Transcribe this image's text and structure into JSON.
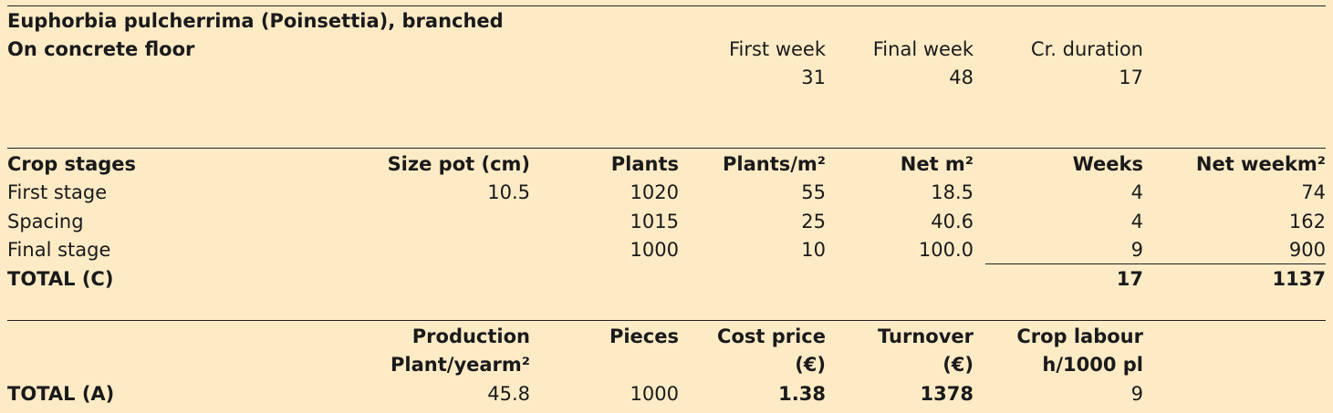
{
  "header": {
    "title": "Euphorbia pulcherrima (Poinsettia), branched",
    "subtitle": "On concrete floor",
    "first_week_label": "First week",
    "final_week_label": "Final week",
    "duration_label": "Cr. duration",
    "first_week": "31",
    "final_week": "48",
    "duration": "17"
  },
  "stages": {
    "columns": [
      "Crop stages",
      "Size pot (cm)",
      "Plants",
      "Plants/m²",
      "Net m²",
      "Weeks",
      "Net weekm²"
    ],
    "rows": [
      [
        "First stage",
        "10.5",
        "1020",
        "55",
        "18.5",
        "4",
        "74"
      ],
      [
        "Spacing",
        "",
        "1015",
        "25",
        "40.6",
        "4",
        "162"
      ],
      [
        "Final stage",
        "",
        "1000",
        "10",
        "100.0",
        "9",
        "900"
      ]
    ],
    "total_label": "TOTAL (C)",
    "total_weeks": "17",
    "total_net_weekm2": "1137"
  },
  "summary": {
    "production_label_1": "Production",
    "production_label_2": "Plant/yearm²",
    "pieces_label": "Pieces",
    "cost_label_1": "Cost price",
    "cost_label_2": "(€)",
    "turnover_label_1": "Turnover",
    "turnover_label_2": "(€)",
    "labour_label_1": "Crop labour",
    "labour_label_2": "h/1000 pl",
    "total_label": "TOTAL (A)",
    "production": "45.8",
    "pieces": "1000",
    "cost_price": "1.38",
    "turnover": "1378",
    "crop_labour": "9"
  }
}
